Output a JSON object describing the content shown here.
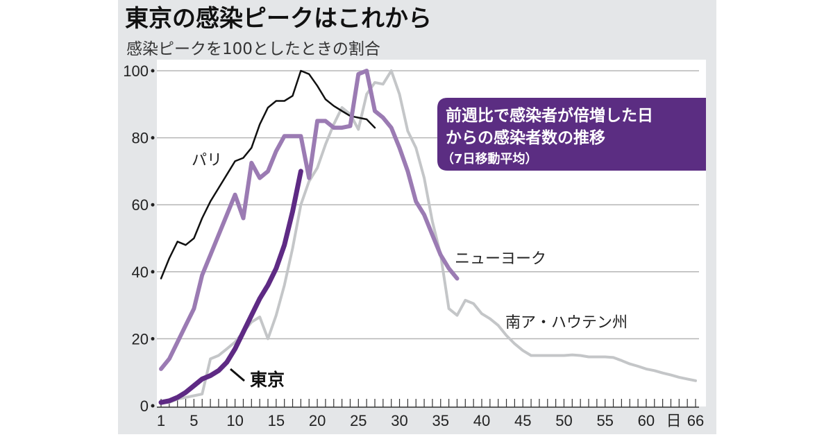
{
  "chart_data": {
    "type": "line",
    "title": "東京の感染ピークはこれから",
    "subtitle": "感染ピークを100としたときの割合",
    "annotation": {
      "line1": "前週比で感染者が倍増した日",
      "line2": "からの感染者数の推移",
      "line3": "（7日移動平均）"
    },
    "xlabel": "日",
    "ylabel": "",
    "xlim": [
      1,
      66
    ],
    "ylim": [
      0,
      100
    ],
    "x_tick_labels": [
      "1",
      "5",
      "10",
      "15",
      "20",
      "25",
      "30",
      "35",
      "40",
      "45",
      "50",
      "55",
      "60",
      "66"
    ],
    "x_tick_values": [
      1,
      5,
      10,
      15,
      20,
      25,
      30,
      35,
      40,
      45,
      50,
      55,
      60,
      66
    ],
    "y_ticks": [
      0,
      20,
      40,
      60,
      80,
      100
    ],
    "grid": true,
    "series": [
      {
        "name": "パリ",
        "color": "#111111",
        "values": [
          38,
          44,
          49,
          48,
          50,
          56,
          61,
          65,
          69,
          73,
          74,
          77,
          84,
          89,
          91,
          91,
          92.5,
          100,
          99,
          95.5,
          91.5,
          89.5,
          88,
          86.5,
          86,
          85.5,
          83
        ]
      },
      {
        "name": "ニューヨーク",
        "color": "#9b7bb3",
        "values": [
          11,
          14,
          19,
          24,
          29,
          39,
          45,
          51,
          57,
          63,
          56,
          72.5,
          68,
          70,
          76,
          80.5,
          80.5,
          80.5,
          68,
          85,
          85,
          83,
          83,
          83.5,
          99,
          100,
          88,
          86,
          83,
          77,
          70,
          61,
          57,
          51,
          45,
          41,
          38
        ]
      },
      {
        "name": "南ア・ハウテン州",
        "color": "#c4c6c8",
        "values": [
          1,
          1,
          2,
          2.5,
          3,
          3.5,
          14,
          15,
          17,
          19,
          22,
          25,
          26.5,
          20,
          27,
          36,
          47,
          60,
          67,
          71,
          78,
          84,
          89,
          87,
          82.5,
          93,
          96.5,
          96,
          100,
          93,
          82,
          77,
          68,
          55,
          45,
          29,
          27,
          31.5,
          30.5,
          27.5,
          26,
          24,
          21,
          18.5,
          16.5,
          15,
          15,
          15,
          15,
          15,
          15.2,
          15,
          14.6,
          14.6,
          14.6,
          14.4,
          13.5,
          12.5,
          11.8,
          11,
          10.5,
          9.8,
          9.2,
          8.5,
          8,
          7.5
        ]
      },
      {
        "name": "東京",
        "color": "#5e2a84",
        "values": [
          1,
          1.5,
          2.5,
          4,
          6,
          8,
          9,
          10.5,
          13,
          17,
          22,
          27,
          32,
          36,
          41,
          48,
          58,
          70
        ]
      }
    ]
  },
  "colors": {
    "panel": "#e4e6e8",
    "plot": "#ffffff",
    "annotation_box": "#5b2d82",
    "grid": "#b5b5b5"
  }
}
